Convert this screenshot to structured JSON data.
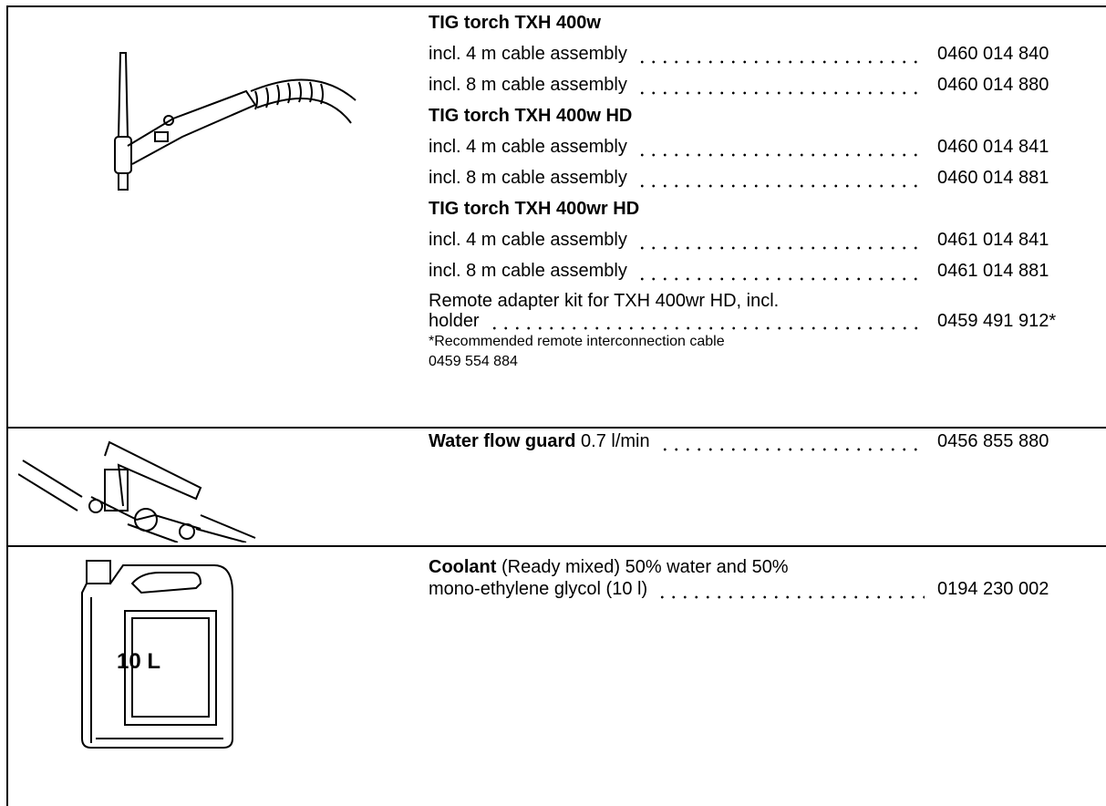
{
  "rows": [
    {
      "groups": [
        {
          "heading": "TIG torch TXH 400w",
          "items": [
            {
              "label": "incl. 4 m cable assembly",
              "number": "0460 014 840"
            },
            {
              "label": "incl. 8 m cable assembly",
              "number": "0460 014 880"
            }
          ]
        },
        {
          "heading": "TIG torch TXH 400w HD",
          "items": [
            {
              "label": "incl. 4 m cable assembly",
              "number": "0460 014 841"
            },
            {
              "label": "incl. 8 m cable assembly",
              "number": "0460 014 881"
            }
          ]
        },
        {
          "heading": "TIG torch TXH 400wr HD",
          "items": [
            {
              "label": "incl. 4 m cable assembly",
              "number": "0461 014 841"
            },
            {
              "label": "incl. 8 m cable assembly",
              "number": "0461 014 881"
            }
          ]
        }
      ],
      "extra": {
        "lines": [
          "Remote adapter kit for TXH 400wr HD, incl.",
          "holder"
        ],
        "number": "0459 491 912*",
        "note": [
          "*Recommended remote interconnection cable",
          "0459 554 884"
        ]
      }
    },
    {
      "title": "Water flow guard",
      "lines": [
        " 0.7 l/min"
      ],
      "number": "0456 855 880"
    },
    {
      "title": "Coolant",
      "lines": [
        " (Ready mixed) 50% water and 50%",
        "mono-ethylene glycol (10 l)"
      ],
      "number": "0194 230 002",
      "image_label": "10 L"
    }
  ]
}
